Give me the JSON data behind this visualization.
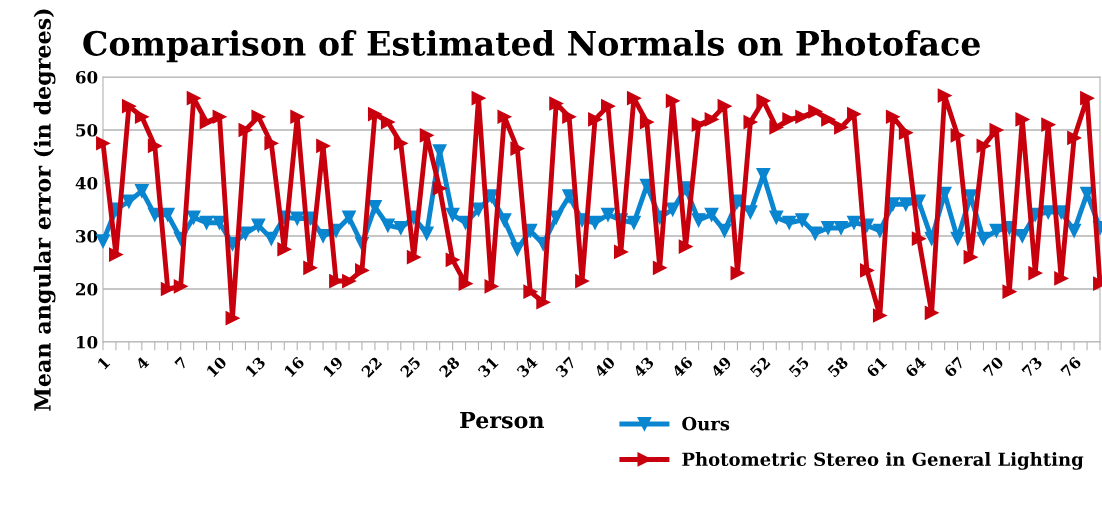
{
  "chart_data": {
    "type": "line",
    "title": "Comparison of Estimated Normals on Photoface",
    "xlabel": "Person",
    "ylabel": "Mean angular error (in degrees)",
    "categories": [
      "1",
      null,
      null,
      "4",
      null,
      null,
      "7",
      null,
      null,
      "10",
      null,
      null,
      "13",
      null,
      null,
      "16",
      null,
      null,
      "19",
      null,
      null,
      "22",
      null,
      null,
      "25",
      null,
      null,
      "28",
      null,
      null,
      "31",
      null,
      null,
      "34",
      null,
      null,
      "37",
      null,
      null,
      "40",
      null,
      null,
      "43",
      null,
      null,
      "46",
      null,
      null,
      "49",
      null,
      null,
      "52",
      null,
      null,
      "55",
      null,
      null,
      "58",
      null,
      null,
      "61",
      null,
      null,
      "64",
      null,
      null,
      "67",
      null,
      null,
      "70",
      null,
      null,
      "73",
      null,
      null,
      "76",
      null,
      null
    ],
    "series": [
      {
        "name": "Ours",
        "color": "#0a85cf",
        "marker": "triangle",
        "values": [
          29,
          35,
          36.5,
          38.5,
          34,
          34,
          29.5,
          33.5,
          32.5,
          32.5,
          28.5,
          30.5,
          32,
          29.5,
          33.5,
          33.3,
          33.3,
          30,
          31,
          33.5,
          28.5,
          35.5,
          32,
          31.5,
          33.5,
          30.5,
          46,
          34,
          32.5,
          35,
          37.5,
          33,
          27.5,
          31,
          28.5,
          33.5,
          37.5,
          33,
          32.5,
          34,
          33,
          32.5,
          39.5,
          33.5,
          35,
          39,
          33,
          34,
          31,
          36.5,
          34.5,
          41.5,
          33.5,
          32.5,
          33,
          30.5,
          31.5,
          31.5,
          32.5,
          32,
          31,
          36,
          36,
          36.5,
          29.5,
          38,
          29.5,
          37.5,
          29.5,
          31,
          31.5,
          30,
          34,
          34.5,
          34.5,
          31,
          38,
          31.5
        ]
      },
      {
        "name": "Photometric Stereo in General Lighting",
        "color": "#c8000e",
        "marker": "triangle",
        "values": [
          47.5,
          26.5,
          54.5,
          52.5,
          47,
          20,
          20.5,
          56,
          51.5,
          52.5,
          14.5,
          50,
          52.5,
          47.5,
          27.5,
          52.5,
          24,
          47,
          21.5,
          21.5,
          23.5,
          53,
          51.5,
          47.5,
          26,
          49,
          39,
          25.5,
          21,
          56,
          20.5,
          52.5,
          46.5,
          19.5,
          17.5,
          55,
          52.5,
          21.5,
          52,
          54.5,
          27,
          56,
          51.5,
          24,
          55.5,
          28,
          51,
          52,
          54.5,
          23,
          51.5,
          55.5,
          50.5,
          52,
          52.5,
          53.5,
          52,
          50.5,
          53,
          23.5,
          15,
          52.5,
          49.5,
          29.5,
          15.5,
          56.5,
          49,
          26,
          47,
          50,
          19.5,
          52,
          23,
          51,
          22,
          48.5,
          56,
          21
        ]
      }
    ],
    "ylim": [
      10,
      60
    ],
    "yticks": [
      10,
      20,
      30,
      40,
      50,
      60
    ],
    "grid": "y",
    "legend": "bottom right",
    "line_style": "solid"
  }
}
